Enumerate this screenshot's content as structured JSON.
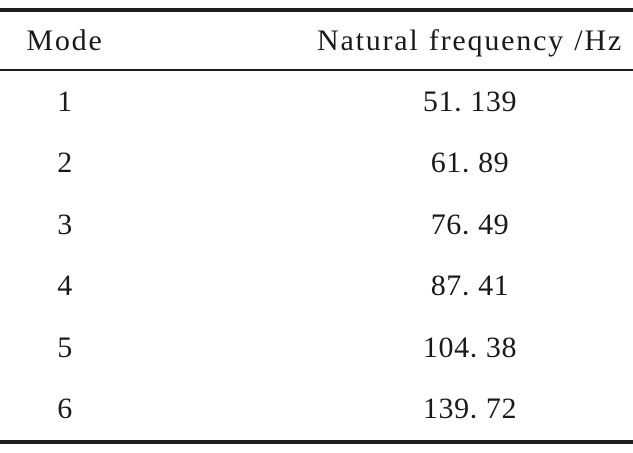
{
  "table": {
    "header": {
      "mode": "Mode",
      "frequency": "Natural frequency /Hz"
    },
    "rows": [
      {
        "mode": "1",
        "frequency": "51. 139"
      },
      {
        "mode": "2",
        "frequency": "61. 89"
      },
      {
        "mode": "3",
        "frequency": "76. 49"
      },
      {
        "mode": "4",
        "frequency": "87. 41"
      },
      {
        "mode": "5",
        "frequency": "104. 38"
      },
      {
        "mode": "6",
        "frequency": "139. 72"
      }
    ]
  },
  "chart_data": {
    "type": "table",
    "columns": [
      "Mode",
      "Natural frequency /Hz"
    ],
    "modes": [
      1,
      2,
      3,
      4,
      5,
      6
    ],
    "natural_frequency_hz": [
      51.139,
      61.89,
      76.49,
      87.41,
      104.38,
      139.72
    ]
  },
  "colors": {
    "background": "#ffffff",
    "text": "#1a1a1a",
    "rule": "#1c1c1c"
  }
}
